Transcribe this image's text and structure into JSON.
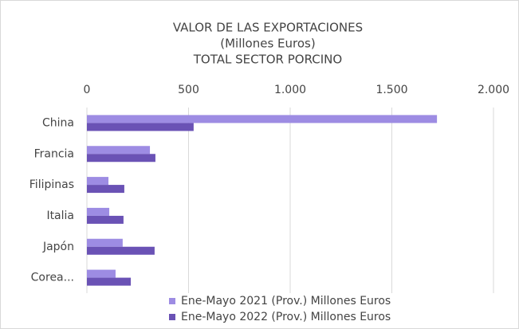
{
  "chart_data": {
    "type": "bar",
    "orientation": "horizontal",
    "title": [
      "VALOR DE LAS EXPORTACIONES",
      "(Millones Euros)",
      "TOTAL SECTOR PORCINO"
    ],
    "categories": [
      "China",
      "Francia",
      "Filipinas",
      "Italia",
      "Japón",
      "Corea..."
    ],
    "series": [
      {
        "name": "Ene-Mayo 2021 (Prov.) Millones Euros",
        "color": "#9d8ce3",
        "values": [
          1722,
          310,
          106,
          110,
          176,
          141
        ]
      },
      {
        "name": "Ene-Mayo 2022 (Prov.) Millones Euros",
        "color": "#6a52b5",
        "values": [
          525,
          337,
          184,
          180,
          333,
          216
        ]
      }
    ],
    "xlim": [
      0,
      2000
    ],
    "xticks": [
      0,
      500,
      {
        "value": 1000,
        "label": "1.000"
      },
      {
        "value": 1500,
        "label": "1.500"
      },
      {
        "value": 2000,
        "label": "2.000"
      }
    ],
    "grid": true,
    "legend": "bottom"
  }
}
